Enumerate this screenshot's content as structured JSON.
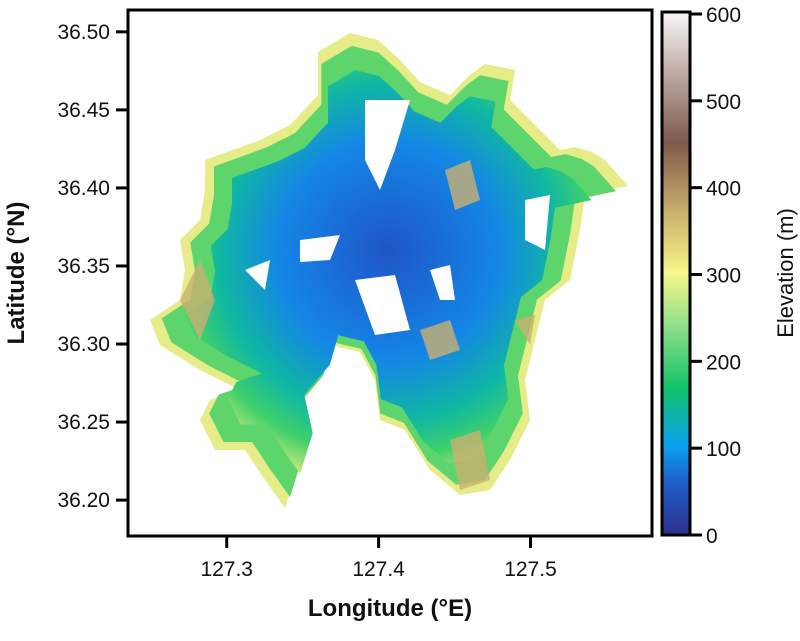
{
  "map": {
    "xlabel": "Longitude (°E)",
    "ylabel": "Latitude (°N)",
    "xticks": [
      "127.3",
      "127.4",
      "127.5"
    ],
    "xtick_values": [
      127.3,
      127.4,
      127.5
    ],
    "yticks": [
      "36.50",
      "36.45",
      "36.40",
      "36.35",
      "36.30",
      "36.25",
      "36.20"
    ],
    "ytick_values": [
      36.5,
      36.45,
      36.4,
      36.35,
      36.3,
      36.25,
      36.2
    ],
    "xlim": [
      127.235,
      127.58
    ],
    "ylim": [
      36.177,
      36.514
    ],
    "colorbar": {
      "label": "Elevation (m)",
      "ticks": [
        "0",
        "100",
        "200",
        "300",
        "400",
        "500",
        "600"
      ],
      "tick_values": [
        0,
        100,
        200,
        300,
        400,
        500,
        600
      ],
      "range": [
        0,
        600
      ],
      "colormap": [
        "#2b2f8c",
        "#1a6fd8",
        "#0aa0f0",
        "#0fc36a",
        "#8fe08a",
        "#f5f58a",
        "#c2a868",
        "#7e5a4c",
        "#b8a29c",
        "#f8f8f8"
      ]
    }
  }
}
